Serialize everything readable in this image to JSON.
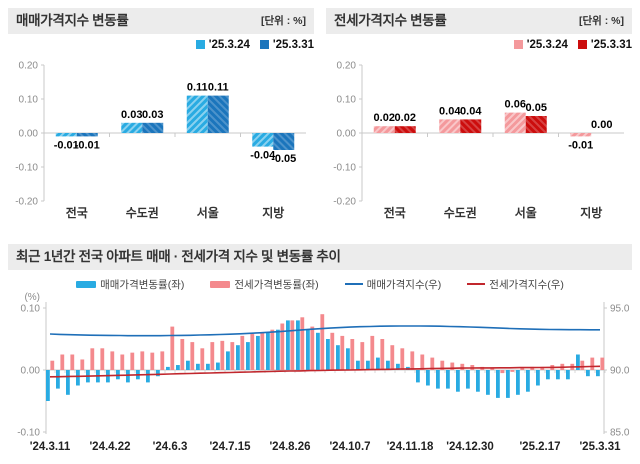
{
  "panels": {
    "sales": {
      "title": "매매가격지수 변동률",
      "unit": "[단위 : %]"
    },
    "jeonse": {
      "title": "전세가격지수 변동률",
      "unit": "[단위 : %]"
    },
    "trend": {
      "title": "최근 1년간 전국 아파트 매매 · 전세가격 지수 및 변동률 추이"
    }
  },
  "chart_data": [
    {
      "id": "sales-weekly-bar",
      "type": "bar",
      "title": "매매가격지수 변동률 (단위: %)",
      "categories": [
        "전국",
        "수도권",
        "서울",
        "지방"
      ],
      "series": [
        {
          "name": "'25.3.24",
          "color": "#29ABE2",
          "values": [
            -0.01,
            0.03,
            0.11,
            -0.04
          ]
        },
        {
          "name": "'25.3.31",
          "color": "#1B75BC",
          "values": [
            -0.01,
            0.03,
            0.11,
            -0.05
          ]
        }
      ],
      "ylim": [
        -0.2,
        0.2
      ],
      "yticks": [
        "0.20",
        "0.10",
        "0.00",
        "-0.10",
        "-0.20"
      ],
      "grid": false,
      "legend_position": "top-right"
    },
    {
      "id": "jeonse-weekly-bar",
      "type": "bar",
      "title": "전세가격지수 변동률 (단위: %)",
      "categories": [
        "전국",
        "수도권",
        "서울",
        "지방"
      ],
      "series": [
        {
          "name": "'25.3.24",
          "color": "#F4999C",
          "values": [
            0.02,
            0.04,
            0.06,
            -0.01
          ]
        },
        {
          "name": "'25.3.31",
          "color": "#CC0D0D",
          "values": [
            0.02,
            0.04,
            0.05,
            0.0
          ]
        }
      ],
      "ylim": [
        -0.2,
        0.2
      ],
      "yticks": [
        "0.20",
        "0.10",
        "0.00",
        "-0.10",
        "-0.20"
      ],
      "grid": false,
      "legend_position": "top-right"
    },
    {
      "id": "trend-combo",
      "type": "bar+line",
      "title": "최근 1년간 전국 아파트 매매·전세가격 지수 및 변동률 추이",
      "x_count": 56,
      "x_tick_indices": [
        0,
        6,
        12,
        18,
        24,
        30,
        36,
        42,
        49,
        55
      ],
      "x_tick_labels": [
        "'24.3.11",
        "'24.4.22",
        "'24.6.3",
        "'24.7.15",
        "'24.8.26",
        "'24.10.7",
        "'24.11.18",
        "'24.12.30",
        "'25.2.17",
        "'25.3.31"
      ],
      "left_axis": {
        "label": "(%)",
        "ticks": [
          "0.10",
          "0.00",
          "-0.10"
        ],
        "range": [
          -0.1,
          0.1
        ]
      },
      "right_axis": {
        "ticks": [
          "95.0",
          "90.0",
          "85.0"
        ],
        "range": [
          85.0,
          95.0
        ]
      },
      "grid": false,
      "legend_position": "top-center",
      "series": [
        {
          "name": "매매가격변동률(좌)",
          "kind": "bar",
          "axis": "left",
          "color": "#29ABE2",
          "values": [
            -0.05,
            -0.03,
            -0.04,
            -0.025,
            -0.02,
            -0.02,
            -0.02,
            -0.015,
            -0.02,
            -0.015,
            -0.02,
            -0.01,
            0.005,
            0.008,
            0.015,
            0.01,
            0.01,
            0.012,
            0.03,
            0.04,
            0.045,
            0.055,
            0.06,
            0.065,
            0.08,
            0.08,
            0.065,
            0.06,
            0.05,
            0.04,
            0.035,
            0.015,
            0.015,
            0.02,
            0.015,
            0.01,
            0.005,
            -0.02,
            -0.025,
            -0.03,
            -0.03,
            -0.035,
            -0.03,
            -0.035,
            -0.04,
            -0.045,
            -0.045,
            -0.04,
            -0.035,
            -0.025,
            -0.015,
            -0.015,
            -0.015,
            0.025,
            -0.01,
            -0.01
          ]
        },
        {
          "name": "전세가격변동률(좌)",
          "kind": "bar",
          "axis": "left",
          "color": "#F4898D",
          "values": [
            0.015,
            0.025,
            0.025,
            0.017,
            0.035,
            0.035,
            0.03,
            0.025,
            0.028,
            0.03,
            0.028,
            0.03,
            0.07,
            0.05,
            0.045,
            0.035,
            0.045,
            0.047,
            0.045,
            0.055,
            0.058,
            0.06,
            0.065,
            0.075,
            0.08,
            0.085,
            0.07,
            0.09,
            0.06,
            0.055,
            0.05,
            0.045,
            0.055,
            0.05,
            0.04,
            0.035,
            0.03,
            0.025,
            0.02,
            0.015,
            0.012,
            0.01,
            0.008,
            0.005,
            0.003,
            -0.005,
            -0.003,
            0.003,
            0.005,
            0.005,
            0.008,
            0.01,
            0.01,
            0.015,
            0.02,
            0.02
          ]
        },
        {
          "name": "매매가격지수(우)",
          "kind": "line",
          "axis": "right",
          "color": "#1F6FB8",
          "values": [
            92.9,
            92.87,
            92.85,
            92.83,
            92.81,
            92.8,
            92.79,
            92.78,
            92.77,
            92.77,
            92.77,
            92.77,
            92.78,
            92.79,
            92.8,
            92.82,
            92.84,
            92.86,
            92.89,
            92.92,
            92.96,
            93.0,
            93.05,
            93.1,
            93.16,
            93.22,
            93.28,
            93.33,
            93.38,
            93.42,
            93.46,
            93.49,
            93.51,
            93.53,
            93.54,
            93.55,
            93.55,
            93.55,
            93.54,
            93.53,
            93.51,
            93.49,
            93.47,
            93.44,
            93.41,
            93.38,
            93.35,
            93.32,
            93.3,
            93.28,
            93.27,
            93.26,
            93.25,
            93.25,
            93.24,
            93.24
          ]
        },
        {
          "name": "전세가격지수(우)",
          "kind": "line",
          "axis": "right",
          "color": "#C1272D",
          "values": [
            89.45,
            89.46,
            89.48,
            89.49,
            89.51,
            89.53,
            89.55,
            89.57,
            89.59,
            89.61,
            89.63,
            89.65,
            89.68,
            89.7,
            89.72,
            89.74,
            89.76,
            89.78,
            89.8,
            89.82,
            89.84,
            89.86,
            89.88,
            89.9,
            89.92,
            89.93,
            89.95,
            89.96,
            89.98,
            89.99,
            90.0,
            90.02,
            90.03,
            90.05,
            90.06,
            90.08,
            90.09,
            90.1,
            90.12,
            90.13,
            90.14,
            90.15,
            90.16,
            90.17,
            90.17,
            90.18,
            90.18,
            90.19,
            90.19,
            90.2,
            90.21,
            90.22,
            90.24,
            90.26,
            90.28,
            90.3
          ]
        }
      ]
    }
  ],
  "colors": {
    "header_bg": "#ECECEC",
    "axis": "#C9C9C9",
    "tick_text": "#8C8C8C",
    "value_text": "#000000",
    "category_text": "#333333"
  }
}
